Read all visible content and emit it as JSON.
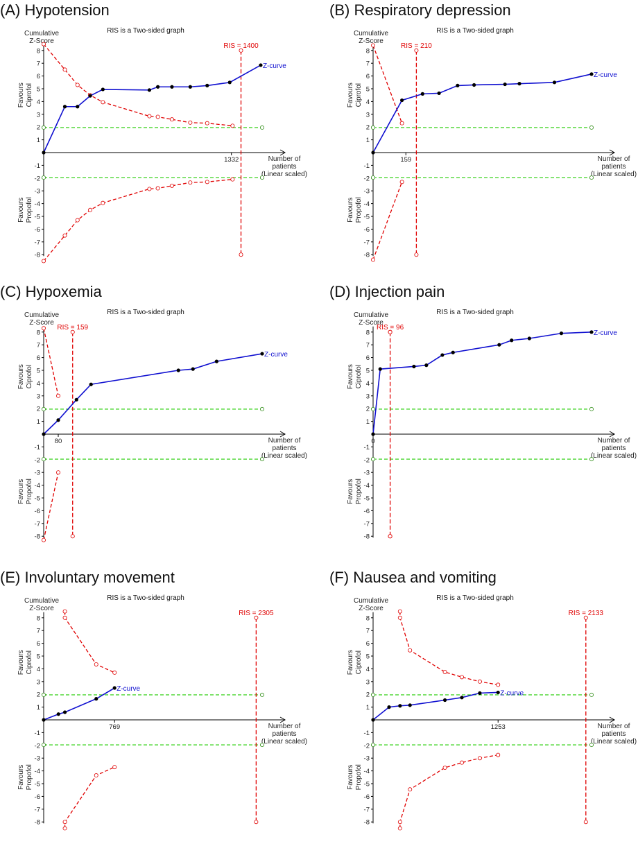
{
  "chart_data": [
    {
      "type": "line",
      "panel_label": "(A) Hypotension",
      "subtitle": "RIS is a Two-sided graph",
      "ylabel_lines": [
        "Cumulative",
        "Z-Score"
      ],
      "upper_label": [
        "Favours",
        "Ciprofol"
      ],
      "lower_label": [
        "Favours",
        "Propofol"
      ],
      "xlabel_lines": [
        "Number of",
        "patients",
        "(Linear scaled)"
      ],
      "ylim": [
        -8,
        8
      ],
      "xmax": 1550,
      "y_ticks": [
        "8",
        "7",
        "6",
        "5",
        "4",
        "3",
        "2",
        "1",
        "-1",
        "-2",
        "-3",
        "-4",
        "-5",
        "-6",
        "-7",
        "-8"
      ],
      "x_tick_label": "1332",
      "x_tick_value": 1332,
      "ris_label": "RIS = 1400",
      "ris_x": 1400,
      "zcurve_label": "Z-curve",
      "zcurve": {
        "x": [
          0,
          150,
          240,
          330,
          420,
          750,
          810,
          910,
          1040,
          1160,
          1320,
          1540
        ],
        "y": [
          0,
          3.6,
          3.6,
          4.45,
          4.95,
          4.9,
          5.15,
          5.15,
          5.15,
          5.25,
          5.5,
          6.85
        ]
      },
      "upper_boundary": {
        "x": [
          0,
          150,
          240,
          330,
          420,
          750,
          810,
          910,
          1040,
          1160,
          1340
        ],
        "y": [
          8.5,
          6.5,
          5.3,
          4.5,
          3.95,
          2.85,
          2.8,
          2.6,
          2.35,
          2.3,
          2.1
        ]
      },
      "lower_boundary": {
        "x": [
          0,
          150,
          240,
          330,
          420,
          750,
          810,
          910,
          1040,
          1160,
          1340
        ],
        "y": [
          -8.5,
          -6.5,
          -5.3,
          -4.5,
          -3.95,
          -2.85,
          -2.8,
          -2.6,
          -2.35,
          -2.3,
          -2.1
        ]
      },
      "conventional_boundary": 1.96
    },
    {
      "type": "line",
      "panel_label": "(B) Respiratory depression",
      "subtitle": "RIS is a Two-sided graph",
      "ylabel_lines": [
        "Cumulative",
        "Z-Score"
      ],
      "upper_label": [
        "Favours",
        "Ciprofol"
      ],
      "lower_label": [
        "Favours",
        "Propofol"
      ],
      "xlabel_lines": [
        "Number of",
        "patients",
        "(Linear scaled)"
      ],
      "ylim": [
        -8,
        8
      ],
      "xmax": 1060,
      "y_ticks": [
        "8",
        "7",
        "6",
        "5",
        "4",
        "3",
        "2",
        "1",
        "-1",
        "-2",
        "-3",
        "-4",
        "-5",
        "-6",
        "-7",
        "-8"
      ],
      "x_tick_label": "159",
      "x_tick_value": 159,
      "ris_label": "RIS = 210",
      "ris_x": 210,
      "zcurve_label": "Z-curve",
      "zcurve": {
        "x": [
          0,
          140,
          240,
          320,
          410,
          490,
          640,
          710,
          880,
          1060
        ],
        "y": [
          0,
          4.1,
          4.6,
          4.65,
          5.25,
          5.3,
          5.35,
          5.4,
          5.5,
          6.15
        ]
      },
      "upper_boundary": {
        "x": [
          0,
          140
        ],
        "y": [
          8.4,
          2.3
        ]
      },
      "lower_boundary": {
        "x": [
          0,
          140
        ],
        "y": [
          -8.4,
          -2.3
        ]
      },
      "conventional_boundary": 1.96
    },
    {
      "type": "line",
      "panel_label": "(C) Hypoxemia",
      "subtitle": "RIS is a Two-sided graph",
      "ylabel_lines": [
        "Cumulative",
        "Z-Score"
      ],
      "upper_label": [
        "Favours",
        "Ciprofol"
      ],
      "lower_label": [
        "Favours",
        "Propofol"
      ],
      "xlabel_lines": [
        "Number of",
        "patients",
        "(Linear scaled)"
      ],
      "ylim": [
        -8,
        8
      ],
      "xmax": 1200,
      "y_ticks": [
        "8",
        "7",
        "6",
        "5",
        "4",
        "3",
        "2",
        "1",
        "-1",
        "-2",
        "-3",
        "-4",
        "-5",
        "-6",
        "-7",
        "-8"
      ],
      "x_tick_label": "80",
      "x_tick_value": 80,
      "ris_label": "RIS = 159",
      "ris_x": 159,
      "zcurve_label": "Z-curve",
      "zcurve": {
        "x": [
          0,
          80,
          180,
          260,
          740,
          820,
          950,
          1200
        ],
        "y": [
          0,
          1.1,
          2.7,
          3.9,
          5.0,
          5.1,
          5.7,
          6.3
        ]
      },
      "upper_boundary": {
        "x": [
          0,
          80
        ],
        "y": [
          8.3,
          3.0
        ]
      },
      "lower_boundary": {
        "x": [
          0,
          80
        ],
        "y": [
          -8.3,
          -3.0
        ]
      },
      "conventional_boundary": 1.96
    },
    {
      "type": "line",
      "panel_label": "(D) Injection pain",
      "subtitle": "RIS is a Two-sided graph",
      "ylabel_lines": [
        "Cumulative",
        "Z-Score"
      ],
      "upper_label": [
        "Favours",
        "Ciprofol"
      ],
      "lower_label": [
        "Favours",
        "Propofol"
      ],
      "xlabel_lines": [
        "Number of",
        "patients",
        "(Linear scaled)"
      ],
      "ylim": [
        -8,
        8
      ],
      "xmax": 1230,
      "y_ticks": [
        "8",
        "7",
        "6",
        "5",
        "4",
        "3",
        "2",
        "1",
        "-1",
        "-2",
        "-3",
        "-4",
        "-5",
        "-6",
        "-7",
        "-8"
      ],
      "x_tick_label": "0",
      "x_tick_value": 0,
      "ris_label": "RIS = 96",
      "ris_x": 96,
      "zcurve_label": "Z-curve",
      "zcurve": {
        "x": [
          0,
          40,
          230,
          300,
          390,
          450,
          710,
          780,
          880,
          1060,
          1230
        ],
        "y": [
          0,
          5.1,
          5.3,
          5.4,
          6.2,
          6.4,
          7.0,
          7.35,
          7.5,
          7.9,
          8.0
        ]
      },
      "upper_boundary": {
        "x": [
          96,
          96
        ],
        "y": [
          8,
          8
        ]
      },
      "lower_boundary": {
        "x": [
          96,
          96
        ],
        "y": [
          -8,
          -8
        ]
      },
      "conventional_boundary": 1.96
    },
    {
      "type": "line",
      "panel_label": "(E) Involuntary movement",
      "subtitle": "RIS is a Two-sided graph",
      "ylabel_lines": [
        "Cumulative",
        "Z-Score"
      ],
      "upper_label": [
        "Favours",
        "Ciprofol"
      ],
      "lower_label": [
        "Favours",
        "Propofol"
      ],
      "xlabel_lines": [
        "Number of",
        "patients",
        "(Linear scaled)"
      ],
      "ylim": [
        -8,
        8
      ],
      "xmax": 2370,
      "y_ticks": [
        "8",
        "7",
        "6",
        "5",
        "4",
        "3",
        "2",
        "1",
        "-1",
        "-2",
        "-3",
        "-4",
        "-5",
        "-6",
        "-7",
        "-8"
      ],
      "x_tick_label": "769",
      "x_tick_value": 769,
      "ris_label": "RIS = 2305",
      "ris_x": 2305,
      "zcurve_label": "Z-curve",
      "zcurve": {
        "x": [
          0,
          160,
          230,
          570,
          769
        ],
        "y": [
          0,
          0.45,
          0.6,
          1.65,
          2.5
        ]
      },
      "upper_boundary": {
        "x": [
          230,
          230,
          570,
          769
        ],
        "y": [
          8.5,
          8.0,
          4.35,
          3.7
        ]
      },
      "lower_boundary": {
        "x": [
          230,
          230,
          570,
          769
        ],
        "y": [
          -8.5,
          -8.0,
          -4.35,
          -3.7
        ]
      },
      "conventional_boundary": 1.96
    },
    {
      "type": "line",
      "panel_label": "(F) Nausea and vomiting",
      "subtitle": "RIS is a Two-sided graph",
      "ylabel_lines": [
        "Cumulative",
        "Z-Score"
      ],
      "upper_label": [
        "Favours",
        "Ciprofol"
      ],
      "lower_label": [
        "Favours",
        "Propofol"
      ],
      "xlabel_lines": [
        "Number of",
        "patients",
        "(Linear scaled)"
      ],
      "ylim": [
        -8,
        8
      ],
      "xmax": 2190,
      "y_ticks": [
        "8",
        "7",
        "6",
        "5",
        "4",
        "3",
        "2",
        "1",
        "-1",
        "-2",
        "-3",
        "-4",
        "-5",
        "-6",
        "-7",
        "-8"
      ],
      "x_tick_label": "1253",
      "x_tick_value": 1253,
      "ris_label": "RIS = 2133",
      "ris_x": 2133,
      "zcurve_label": "Z-curve",
      "zcurve": {
        "x": [
          0,
          160,
          270,
          370,
          720,
          890,
          1070,
          1253
        ],
        "y": [
          0,
          1.0,
          1.1,
          1.15,
          1.55,
          1.75,
          2.1,
          2.15
        ]
      },
      "upper_boundary": {
        "x": [
          270,
          270,
          370,
          720,
          890,
          1070,
          1253
        ],
        "y": [
          8.5,
          8.0,
          5.45,
          3.75,
          3.35,
          3.0,
          2.75
        ]
      },
      "lower_boundary": {
        "x": [
          270,
          270,
          370,
          720,
          890,
          1070,
          1253
        ],
        "y": [
          -8.5,
          -8.0,
          -5.45,
          -3.75,
          -3.35,
          -3.0,
          -2.75
        ]
      },
      "conventional_boundary": 1.96
    }
  ]
}
